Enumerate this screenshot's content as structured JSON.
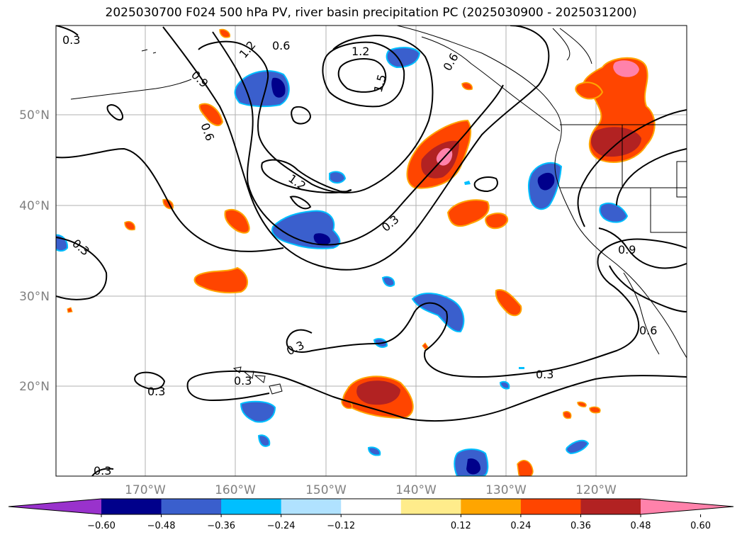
{
  "title": "2025030700 F024 500 hPa PV, river basin precipitation PC (2025030900 - 2025031200)",
  "map": {
    "lat_labels": [
      "50°N",
      "40°N",
      "30°N",
      "20°N"
    ],
    "lon_labels": [
      "170°W",
      "160°W",
      "150°W",
      "140°W",
      "130°W",
      "120°W"
    ]
  },
  "contour_labels": [
    "0.3",
    "0.6",
    "0.9",
    "1.2",
    "1.5",
    "0.3",
    "0.3",
    "0.3",
    "0.3",
    "0.3",
    "0.3",
    "0.3",
    "0.6",
    "0.9",
    "1.2",
    "0.6",
    "0.9",
    "0.6",
    "0.3"
  ],
  "colorbar": {
    "ticks": [
      "−0.60",
      "−0.48",
      "−0.36",
      "−0.24",
      "−0.12",
      "0.12",
      "0.24",
      "0.36",
      "0.48",
      "0.60"
    ],
    "colors": [
      "#9932cc",
      "#00008b",
      "#3a5fcd",
      "#00bfff",
      "#b0e2ff",
      "#ffffff",
      "#ffec8b",
      "#ffa500",
      "#ff4500",
      "#b22222",
      "#ff82ab"
    ]
  }
}
